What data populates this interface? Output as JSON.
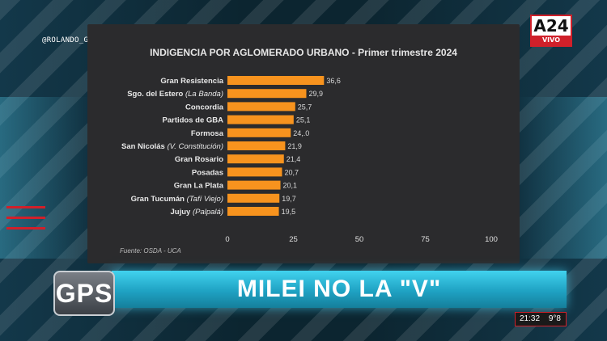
{
  "overlay": {
    "handle": "@ROLANDO_GPS",
    "channel_logo": "A24",
    "live_label": "VIVO",
    "show_logo": "GPS",
    "headline": "MILEI NO LA \"V\"",
    "clock": "21:32",
    "temperature": "9°8"
  },
  "chart_data": {
    "type": "bar",
    "orientation": "horizontal",
    "title": "INDIGENCIA POR AGLOMERADO URBANO - Primer trimestre 2024",
    "categories": [
      {
        "name": "Gran Resistencia",
        "note": ""
      },
      {
        "name": "Sgo. del Estero",
        "note": "(La Banda)"
      },
      {
        "name": "Concordia",
        "note": ""
      },
      {
        "name": "Partidos de GBA",
        "note": ""
      },
      {
        "name": "Formosa",
        "note": ""
      },
      {
        "name": "San Nicolás",
        "note": "(V. Constitución)"
      },
      {
        "name": "Gran Rosario",
        "note": ""
      },
      {
        "name": "Posadas",
        "note": ""
      },
      {
        "name": "Gran La Plata",
        "note": ""
      },
      {
        "name": "Gran Tucumán",
        "note": "(Tafí Viejo)"
      },
      {
        "name": "Jujuy",
        "note": "(Palpalá)"
      }
    ],
    "values": [
      36.6,
      29.9,
      25.7,
      25.1,
      24.0,
      21.9,
      21.4,
      20.7,
      20.1,
      19.7,
      19.5
    ],
    "value_labels": [
      "36,6",
      "29,9",
      "25,7",
      "25,1",
      "24,.0",
      "21,9",
      "21,4",
      "20,7",
      "20,1",
      "19,7",
      "19,5"
    ],
    "xlim": [
      0,
      100
    ],
    "xticks": [
      "0",
      "25",
      "50",
      "75",
      "100"
    ],
    "xtick_values": [
      0,
      25,
      50,
      75,
      100
    ],
    "bar_color": "#f7931e",
    "grid": false,
    "source": "Fuente: OSDA - UCA"
  }
}
